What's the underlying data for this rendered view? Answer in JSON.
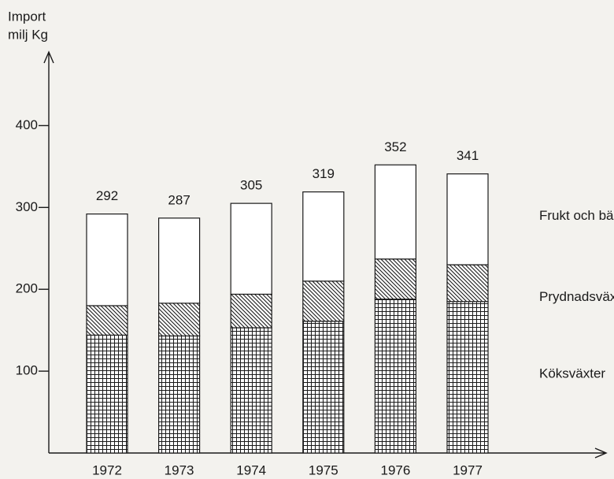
{
  "chart_data": {
    "type": "stacked_bar",
    "y_label": [
      "Import",
      "milj Kg"
    ],
    "categories": [
      "1972",
      "1973",
      "1974",
      "1975",
      "1976",
      "1977"
    ],
    "series": [
      {
        "name": "Köksväxter",
        "color": "#1a1a1a",
        "pattern": "grid",
        "values": [
          144,
          143,
          153,
          161,
          188,
          185
        ]
      },
      {
        "name": "Prydnadsväxter",
        "color": "#1a1a1a",
        "pattern": "diagonal",
        "values": [
          36,
          40,
          41,
          49,
          49,
          45
        ]
      },
      {
        "name": "Frukt och bär",
        "color": "#ffffff",
        "pattern": "none",
        "values": [
          112,
          104,
          111,
          109,
          115,
          111
        ]
      }
    ],
    "totals": [
      292,
      287,
      305,
      319,
      352,
      341
    ],
    "ylim": [
      0,
      488
    ],
    "yticks": [
      100,
      200,
      300,
      400
    ]
  }
}
